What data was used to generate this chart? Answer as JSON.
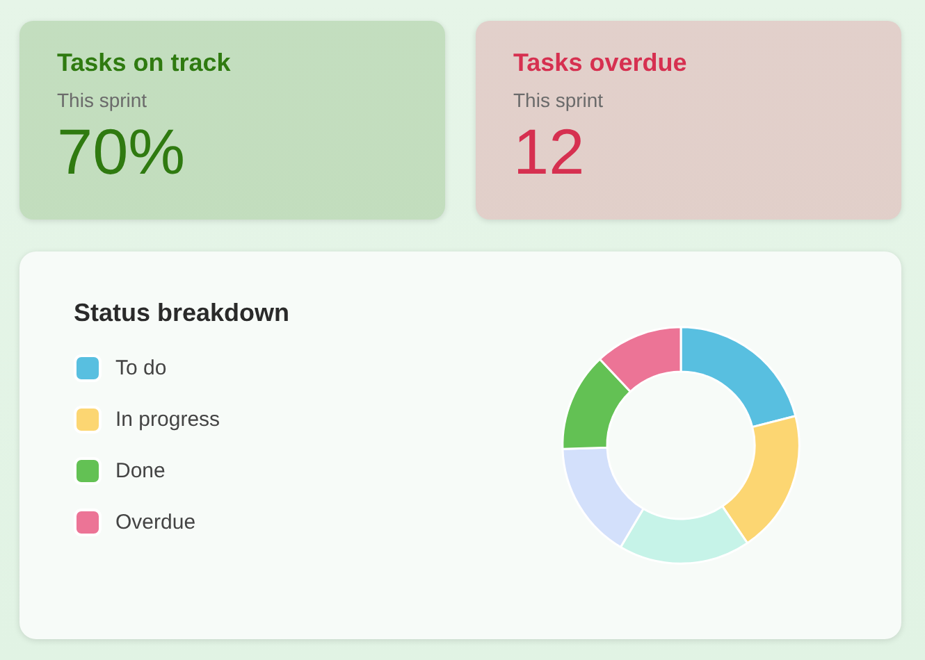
{
  "chart_data": [
    {
      "type": "other",
      "title": "Tasks on track",
      "subtitle": "This sprint",
      "annotations": [
        "70%"
      ],
      "color": "#2f7a10"
    },
    {
      "type": "other",
      "title": "Tasks overdue",
      "subtitle": "This sprint",
      "annotations": [
        "12"
      ],
      "color": "#d63050"
    },
    {
      "type": "donut",
      "title": "Status breakdown",
      "categories": [
        "To do",
        "In progress",
        null,
        null,
        "Done",
        "Overdue"
      ],
      "values": [
        21,
        19.5,
        18,
        16,
        13.5,
        12
      ],
      "colors": [
        "#58bfe0",
        "#fcd672",
        "#c6f3e8",
        "#d3e0fb",
        "#63c154",
        "#ec7496"
      ],
      "legend": "left"
    }
  ]
}
